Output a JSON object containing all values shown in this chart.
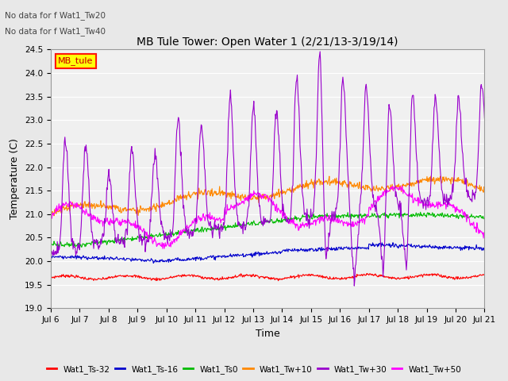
{
  "title": "MB Tule Tower: Open Water 1 (2/21/13-3/19/14)",
  "xlabel": "Time",
  "ylabel": "Temperature (C)",
  "ylim": [
    19.0,
    24.5
  ],
  "xlim": [
    0,
    15
  ],
  "x_tick_labels": [
    "Jul 6",
    "Jul 7",
    "Jul 8",
    "Jul 9",
    "Jul 10",
    "Jul 11",
    "Jul 12",
    "Jul 13",
    "Jul 14",
    "Jul 15",
    "Jul 16",
    "Jul 17",
    "Jul 18",
    "Jul 19",
    "Jul 20",
    "Jul 21"
  ],
  "no_data_text": [
    "No data for f Wat1_Tw20",
    "No data for f Wat1_Tw40"
  ],
  "legend_box_label": "MB_tule",
  "legend_box_color": "#ffff00",
  "legend_box_border": "#ff0000",
  "line_colors": {
    "Wat1_Ts-32": "#ff0000",
    "Wat1_Ts-16": "#0000cc",
    "Wat1_Ts0": "#00bb00",
    "Wat1_Tw+10": "#ff8800",
    "Wat1_Tw+30": "#9900cc",
    "Wat1_Tw+50": "#ff00ff"
  },
  "background_color": "#e8e8e8",
  "plot_bg_color": "#f0f0f0",
  "yticks": [
    19.0,
    19.5,
    20.0,
    20.5,
    21.0,
    21.5,
    22.0,
    22.5,
    23.0,
    23.5,
    24.0,
    24.5
  ]
}
